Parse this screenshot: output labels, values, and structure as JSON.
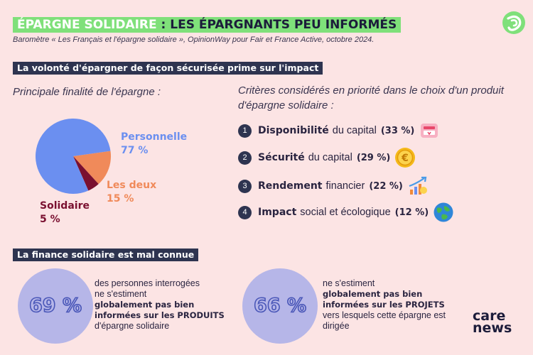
{
  "header": {
    "title_accent": "ÉPARGNE SOLIDAIRE",
    "title_rest": " : LES ÉPARGNANTS PEU INFORMÉS",
    "subtitle": "Baromètre « Les Français et l'épargne solidaire », OpinionWay pour Fair et France Active, octobre 2024."
  },
  "section1": {
    "title": "La volonté d'épargner de façon sécurisée prime sur l'impact"
  },
  "pie_heading": "Principale finalité de l'épargne :",
  "criteria_heading": "Critères considérés en priorité dans le choix d'un produit d'épargne solidaire :",
  "chart_data": [
    {
      "type": "pie",
      "title": "Principale finalité de l'épargne :",
      "categories": [
        "Personnelle",
        "Les deux",
        "Solidaire"
      ],
      "values": [
        77,
        15,
        5
      ],
      "value_labels": [
        "77 %",
        "15 %",
        "5 %"
      ],
      "colors": [
        "#6b8ff0",
        "#f08a5a",
        "#7a1030"
      ]
    },
    {
      "type": "table",
      "title": "Critères considérés en priorité dans le choix d'un produit d'épargne solidaire :",
      "categories": [
        "Disponibilité du capital",
        "Sécurité du capital",
        "Rendement financier",
        "Impact social et écologique"
      ],
      "values": [
        33,
        29,
        22,
        12
      ]
    }
  ],
  "criteria": [
    {
      "rank": "1",
      "bold": "Disponibilité",
      "rest": "du capital",
      "pct": "(33 %)",
      "icon": "piggy-card-icon"
    },
    {
      "rank": "2",
      "bold": "Sécurité",
      "rest": "du capital",
      "pct": "(29 %)",
      "icon": "euro-coin-icon"
    },
    {
      "rank": "3",
      "bold": "Rendement",
      "rest": "financier",
      "pct": "(22 %)",
      "icon": "growth-chart-icon"
    },
    {
      "rank": "4",
      "bold": "Impact",
      "rest": "social et écologique",
      "pct": "(12 %)",
      "icon": "globe-icon"
    }
  ],
  "section2": {
    "title": "La finance solidaire est mal connue"
  },
  "stats": [
    {
      "value": "69 %",
      "line1": "des personnes interrogées",
      "line2": "ne s'estiment",
      "bold": "globalement pas bien informées sur les PRODUITS",
      "tail": "d'épargne solidaire"
    },
    {
      "value": "66 %",
      "line1": "ne s'estiment",
      "bold": "globalement pas bien informées sur les PROJETS",
      "tail": "vers lesquels cette épargne est dirigée"
    }
  ],
  "brand": {
    "line1": "care",
    "line2": "news"
  },
  "colors": {
    "green": "#7fe07a",
    "navy": "#2e3450",
    "background": "#fce4e4",
    "lavender": "#b6b6e8"
  }
}
